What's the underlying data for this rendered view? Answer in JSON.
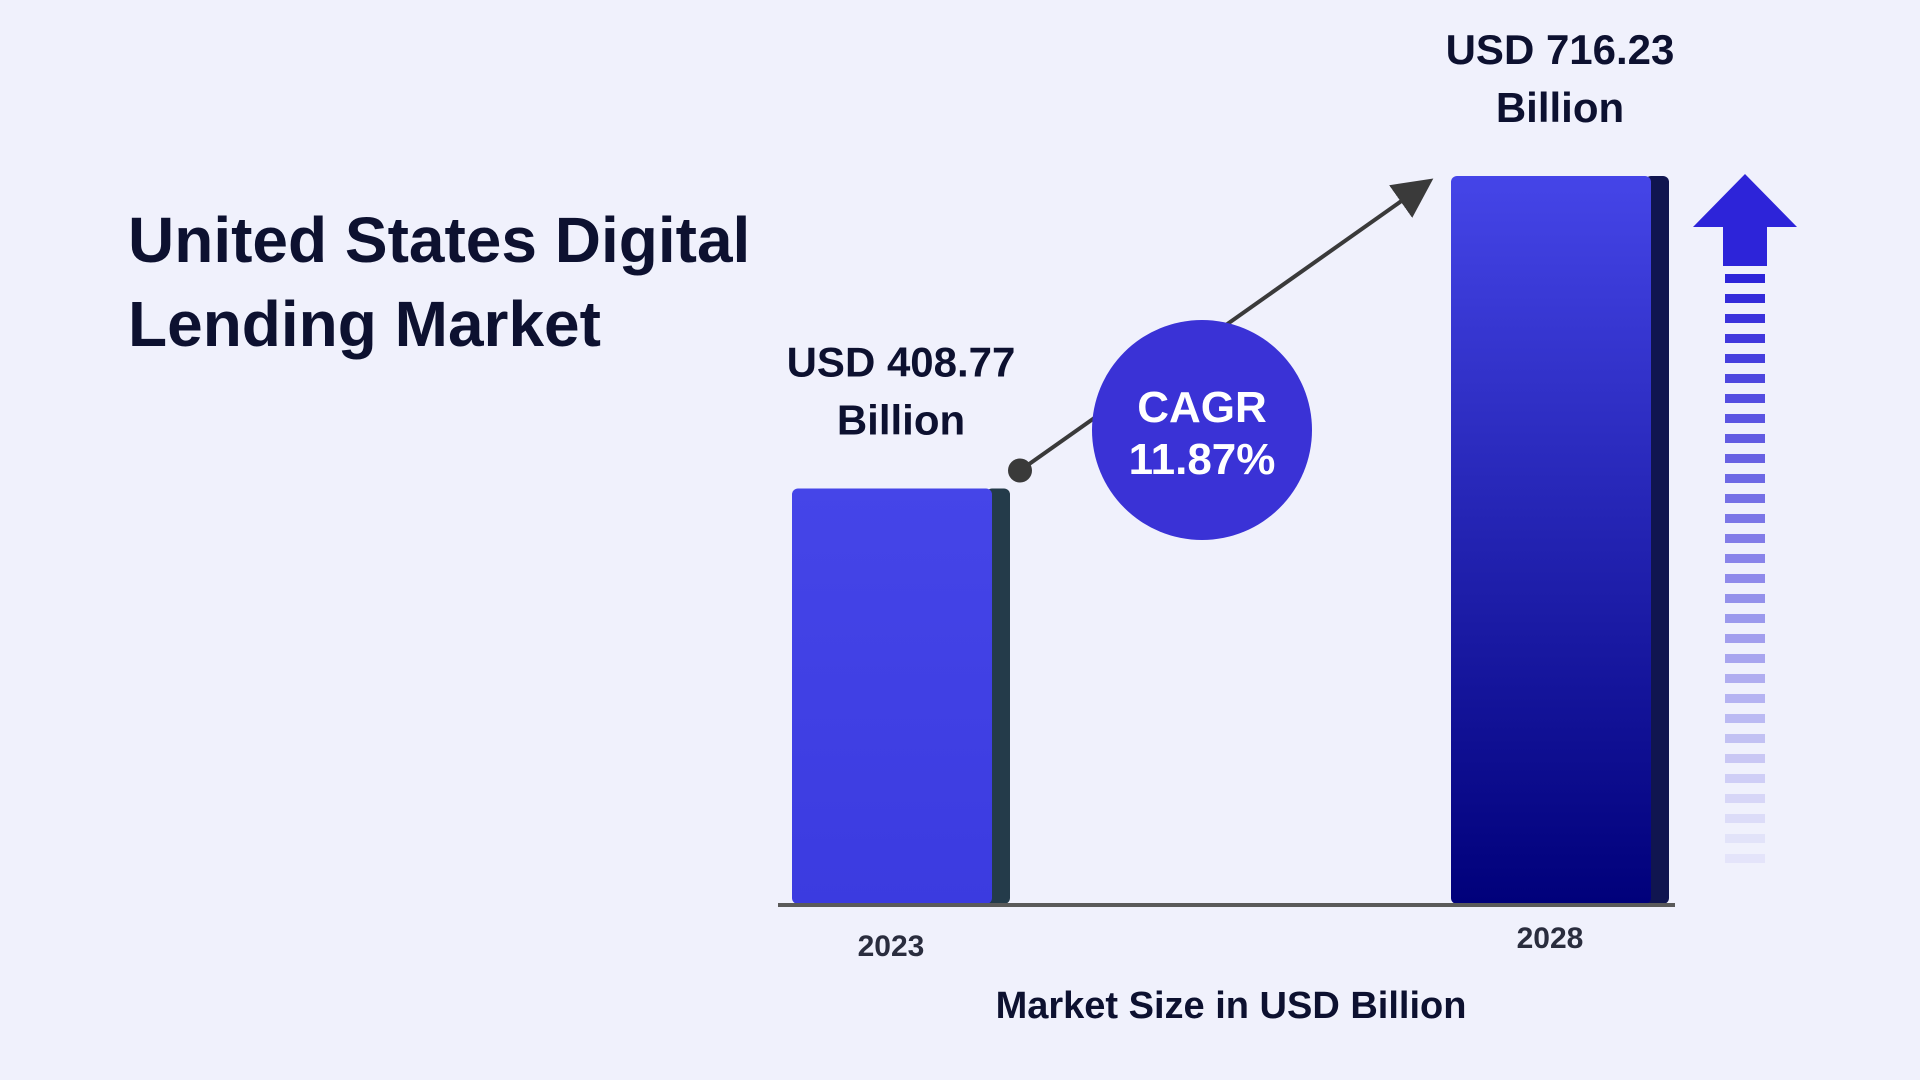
{
  "chart_data": {
    "type": "bar",
    "title_lines": [
      "United States Digital",
      "Lending Market"
    ],
    "categories": [
      "2023",
      "2028"
    ],
    "values": [
      408.77,
      716.23
    ],
    "value_labels": [
      [
        "USD 408.77",
        "Billion"
      ],
      [
        "USD 716.23",
        "Billion"
      ]
    ],
    "xlabel": "Market Size in USD Billion",
    "ylabel": "",
    "ylim": [
      0,
      716.23
    ],
    "grid": false,
    "annotation": {
      "lines": [
        "CAGR",
        "11.87%"
      ]
    },
    "colors": {
      "bar_top": "#4545e8",
      "bar_bottom": "#00007a",
      "bar_shadow_2023": "#243b4a",
      "bar_shadow_2028": "#101550",
      "cagr_circle": "#3a32d6",
      "arrow": "#3a3a3a",
      "up_arrow": "#2d24d9",
      "axis": "#5a5a5a"
    }
  }
}
